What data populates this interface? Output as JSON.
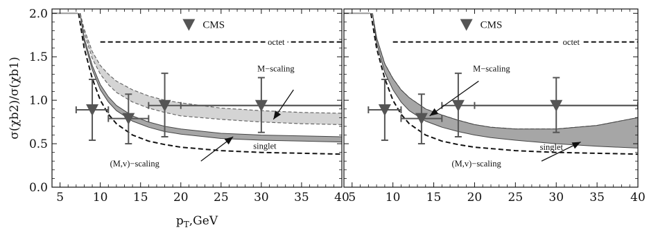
{
  "chart_data": [
    {
      "type": "line",
      "panel": "left",
      "xlabel": "p",
      "xlabel_sub": "T",
      "xlabel_suffix": ",GeV",
      "ylabel": "σ(χb2)/σ(χb1)",
      "xlim": [
        4,
        40
      ],
      "ylim": [
        0,
        2.05
      ],
      "xticks": [
        5,
        10,
        15,
        20,
        25,
        30,
        35,
        40
      ],
      "yticks": [
        "0.0",
        "0.5",
        "1.0",
        "1.5",
        "2.0"
      ],
      "legend_label": "CMS",
      "colors": {
        "cms": "#555555",
        "band_light": "#d4d4d4",
        "band_dark": "#a6a6a6",
        "curve": "#111111"
      },
      "annotations": {
        "octet": "octet",
        "singlet": "singlet",
        "m_scaling": "M−scaling",
        "mv_scaling": "(M,v)−scaling"
      },
      "cms_points": [
        {
          "x": 9.0,
          "y": 0.89,
          "xerr": [
            7.0,
            11.0
          ],
          "yerr": [
            0.54,
            1.24
          ]
        },
        {
          "x": 13.5,
          "y": 0.79,
          "xerr": [
            11.0,
            16.0
          ],
          "yerr": [
            0.5,
            1.07
          ]
        },
        {
          "x": 18.0,
          "y": 0.94,
          "xerr": [
            16.0,
            40.0
          ],
          "yerr": [
            0.58,
            1.31
          ]
        },
        {
          "x": 30.0,
          "y": 0.94,
          "xerr": [
            20.0,
            40.0
          ],
          "yerr": [
            0.63,
            1.26
          ]
        }
      ],
      "octet": {
        "x": [
          10,
          40
        ],
        "y": [
          1.67,
          1.67
        ]
      },
      "singlet": {
        "x": [
          7.3,
          8,
          9,
          10,
          11,
          12,
          14,
          16,
          18,
          20,
          25,
          30,
          35,
          40
        ],
        "y": [
          2.0,
          1.6,
          1.25,
          1.0,
          0.84,
          0.73,
          0.6,
          0.53,
          0.49,
          0.46,
          0.42,
          0.4,
          0.39,
          0.38
        ]
      },
      "flat_start": {
        "x": [
          4,
          7.2
        ],
        "y": [
          2.0,
          2.0
        ]
      },
      "m_scaling_band": {
        "x": [
          7.5,
          8,
          9,
          10,
          11,
          12,
          14,
          16,
          18,
          20,
          25,
          30,
          35,
          40
        ],
        "upper": [
          2.0,
          1.82,
          1.56,
          1.4,
          1.3,
          1.22,
          1.12,
          1.05,
          1.0,
          0.97,
          0.91,
          0.88,
          0.86,
          0.85
        ],
        "lower": [
          2.0,
          1.78,
          1.48,
          1.3,
          1.18,
          1.09,
          0.98,
          0.91,
          0.86,
          0.82,
          0.78,
          0.75,
          0.73,
          0.72
        ]
      },
      "mv_scaling_band": {
        "x": [
          7.5,
          8,
          9,
          10,
          11,
          12,
          14,
          16,
          18,
          20,
          25,
          30,
          35,
          40
        ],
        "upper": [
          2.0,
          1.72,
          1.4,
          1.18,
          1.04,
          0.94,
          0.82,
          0.75,
          0.7,
          0.67,
          0.62,
          0.6,
          0.59,
          0.58
        ],
        "lower": [
          2.0,
          1.68,
          1.35,
          1.12,
          0.98,
          0.88,
          0.76,
          0.69,
          0.64,
          0.61,
          0.56,
          0.54,
          0.53,
          0.52
        ]
      }
    },
    {
      "type": "line",
      "panel": "right",
      "xlim": [
        4,
        40
      ],
      "ylim": [
        0,
        2.05
      ],
      "xticks": [
        5,
        10,
        15,
        20,
        25,
        30,
        35,
        40
      ],
      "legend_label": "CMS",
      "annotations": {
        "octet": "octet",
        "singlet": "singlet",
        "m_scaling": "M−scaling",
        "mv_scaling": "(M,v)−scaling"
      },
      "cms_points": [
        {
          "x": 9.0,
          "y": 0.89,
          "xerr": [
            7.0,
            11.0
          ],
          "yerr": [
            0.54,
            1.24
          ]
        },
        {
          "x": 13.5,
          "y": 0.79,
          "xerr": [
            11.0,
            16.0
          ],
          "yerr": [
            0.5,
            1.07
          ]
        },
        {
          "x": 18.0,
          "y": 0.94,
          "xerr": [
            16.0,
            40.0
          ],
          "yerr": [
            0.58,
            1.31
          ]
        },
        {
          "x": 30.0,
          "y": 0.94,
          "xerr": [
            20.0,
            40.0
          ],
          "yerr": [
            0.63,
            1.26
          ]
        }
      ],
      "octet": {
        "x": [
          10,
          40
        ],
        "y": [
          1.67,
          1.67
        ]
      },
      "singlet": {
        "x": [
          7.3,
          8,
          9,
          10,
          11,
          12,
          14,
          16,
          18,
          20,
          25,
          30,
          35,
          40
        ],
        "y": [
          2.0,
          1.6,
          1.25,
          1.0,
          0.84,
          0.73,
          0.6,
          0.53,
          0.49,
          0.46,
          0.42,
          0.4,
          0.39,
          0.38
        ]
      },
      "flat_start": {
        "x": [
          4,
          7.2
        ],
        "y": [
          2.0,
          2.0
        ]
      },
      "m_scaling_band": {
        "x": [
          7.5,
          8,
          9,
          10,
          11,
          12,
          14,
          16,
          18,
          20,
          22,
          25,
          30,
          35,
          40
        ],
        "upper": [
          2.0,
          1.72,
          1.42,
          1.25,
          1.12,
          1.03,
          0.9,
          0.83,
          0.77,
          0.72,
          0.69,
          0.67,
          0.67,
          0.71,
          0.8
        ],
        "lower": [
          2.0,
          1.68,
          1.36,
          1.18,
          1.05,
          0.96,
          0.84,
          0.76,
          0.7,
          0.65,
          0.62,
          0.6,
          0.56,
          0.53,
          0.52
        ]
      },
      "mv_scaling_band": {
        "x": [
          7.5,
          8,
          9,
          10,
          11,
          12,
          14,
          16,
          18,
          20,
          22,
          25,
          30,
          35,
          40
        ],
        "upper": [
          2.0,
          1.72,
          1.42,
          1.25,
          1.12,
          1.03,
          0.9,
          0.83,
          0.77,
          0.72,
          0.69,
          0.67,
          0.67,
          0.71,
          0.8
        ],
        "lower": [
          2.0,
          1.66,
          1.32,
          1.12,
          0.98,
          0.88,
          0.76,
          0.69,
          0.64,
          0.6,
          0.57,
          0.54,
          0.5,
          0.47,
          0.45
        ]
      }
    }
  ]
}
